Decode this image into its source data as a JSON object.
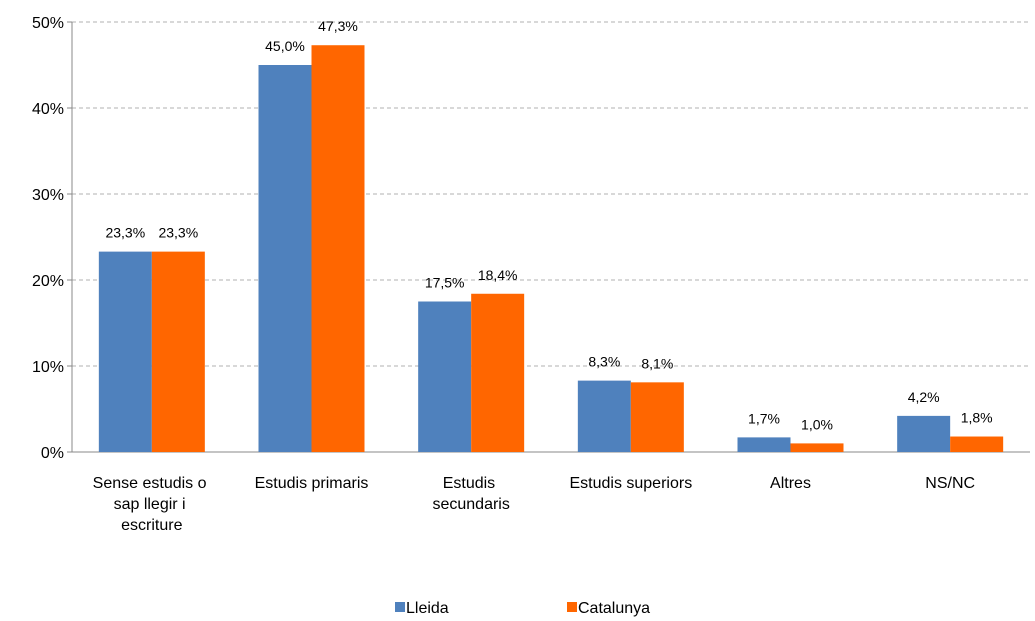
{
  "chart_data": {
    "type": "bar",
    "categories": [
      "Sense estudis o sap llegir i escriture",
      "Estudis primaris",
      "Estudis secundaris",
      "Estudis superiors",
      "Altres",
      "NS/NC"
    ],
    "series": [
      {
        "name": "Lleida",
        "color": "#4f81bd",
        "values": [
          23.3,
          45.0,
          17.5,
          8.3,
          1.7,
          4.2
        ],
        "value_labels": [
          "23,3%",
          "45,0%",
          "17,5%",
          "8,3%",
          "1,7%",
          "4,2%"
        ]
      },
      {
        "name": "Catalunya",
        "color": "#ff6600",
        "values": [
          23.3,
          47.3,
          18.4,
          8.1,
          1.0,
          1.8
        ],
        "value_labels": [
          "23,3%",
          "47,3%",
          "18,4%",
          "8,1%",
          "1,0%",
          "1,8%"
        ]
      }
    ],
    "ylim": [
      0,
      50
    ],
    "yticks": [
      {
        "value": 0,
        "label": "0%"
      },
      {
        "value": 10,
        "label": "10%"
      },
      {
        "value": 20,
        "label": "20%"
      },
      {
        "value": 30,
        "label": "30%"
      },
      {
        "value": 40,
        "label": "40%"
      },
      {
        "value": 50,
        "label": "50%"
      }
    ],
    "grid": true,
    "legend": "bottom"
  }
}
